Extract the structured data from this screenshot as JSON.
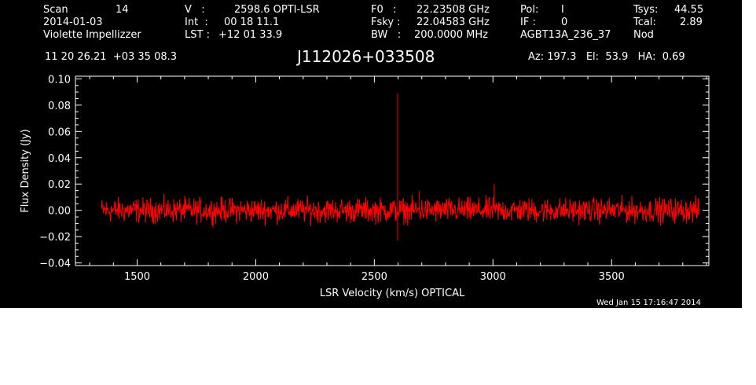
{
  "header": {
    "scan_label": "Scan",
    "scan_number": "14",
    "date": "2014-01-03",
    "observer": "Violette Impellizzer",
    "v_label": "V   :",
    "v_value": "2598.6 OPTI-LSR",
    "int_label": "Int  :",
    "int_value": "00 18 11.1",
    "lst_label": "LST :",
    "lst_value": "+12 01 33.9",
    "f0_label": "F0   :",
    "f0_value": "22.23508 GHz",
    "fsky_label": "Fsky :",
    "fsky_value": "22.04583 GHz",
    "bw_label": "BW   :",
    "bw_value": "200.0000 MHz",
    "pol_label": "Pol:",
    "pol_value": "I",
    "if_label": "IF :",
    "if_value": "0",
    "project": "AGBT13A_236_37",
    "tsys_label": "Tsys:",
    "tsys_value": "44.55",
    "tcal_label": "Tcal:",
    "tcal_value": "2.89",
    "procedure": "Nod",
    "coords": "11 20 26.21  +03 35 08.3",
    "source": "J112026+033508",
    "az_el_ha": "Az: 197.3   El:  53.9   HA:  0.69",
    "timestamp": "Wed Jan 15 17:16:47 2014"
  },
  "colors": {
    "background": "#000000",
    "axes": "#ffffff",
    "trace": "#ff0000"
  },
  "chart_data": {
    "type": "line",
    "xlabel": "LSR Velocity (km/s) OPTICAL",
    "ylabel": "Flux Density (Jy)",
    "xlim": [
      1240,
      3910
    ],
    "ylim": [
      -0.042,
      0.102
    ],
    "xticks": [
      1500,
      2000,
      2500,
      3000,
      3500
    ],
    "xtick_labels": [
      "1500",
      "2000",
      "2500",
      "3000",
      "3500"
    ],
    "yticks": [
      -0.04,
      -0.02,
      0.0,
      0.02,
      0.04,
      0.06,
      0.08,
      0.1
    ],
    "ytick_labels": [
      "−0.04",
      "−0.02",
      "0.00",
      "0.02",
      "0.04",
      "0.06",
      "0.08",
      "0.10"
    ],
    "series": [
      {
        "x_range": [
          1350,
          3870
        ],
        "baseline": 0.0,
        "noise_peak_to_peak": 0.024,
        "spikes": [
          {
            "x": 2598,
            "y": 0.089
          },
          {
            "x": 2598,
            "y": -0.023
          },
          {
            "x": 3005,
            "y": 0.02
          },
          {
            "x": 2690,
            "y": 0.015
          }
        ]
      }
    ]
  }
}
